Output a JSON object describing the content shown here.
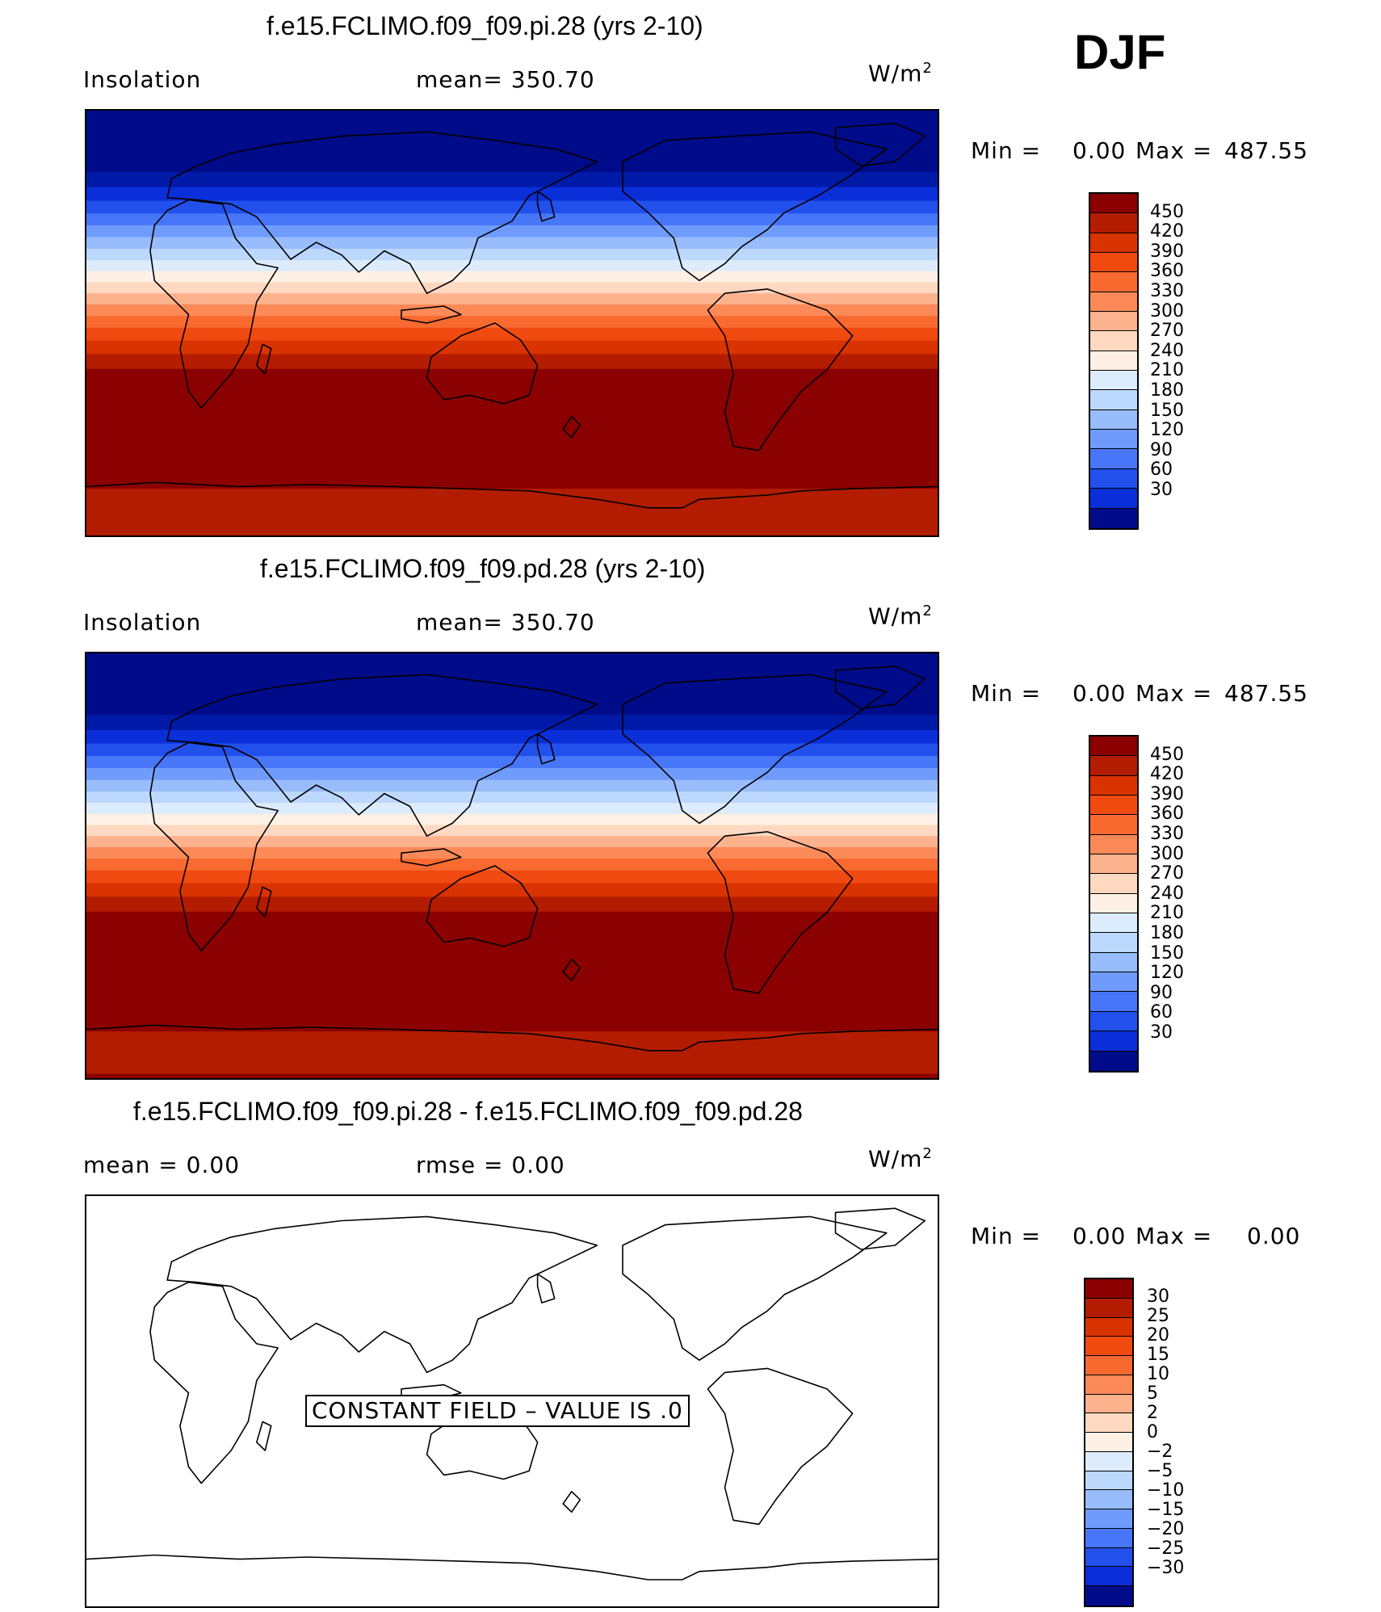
{
  "season": "DJF",
  "units": "W/m",
  "units_sup": "2",
  "panels": [
    {
      "title": "f.e15.FCLIMO.f09_f09.pi.28 (yrs 2-10)",
      "left_label": "Insolation",
      "mid_label": "mean=  350.70",
      "stats": {
        "min_label": "Min  =",
        "min_value": "0.00",
        "max_label": "Max  =",
        "max_value": "487.55"
      },
      "colorbar_labels": [
        "450",
        "420",
        "390",
        "360",
        "330",
        "300",
        "270",
        "240",
        "210",
        "180",
        "150",
        "120",
        "90",
        "60",
        "30"
      ]
    },
    {
      "title": "f.e15.FCLIMO.f09_f09.pd.28 (yrs 2-10)",
      "left_label": "Insolation",
      "mid_label": "mean=  350.70",
      "stats": {
        "min_label": "Min  =",
        "min_value": "0.00",
        "max_label": "Max  =",
        "max_value": "487.55"
      },
      "colorbar_labels": [
        "450",
        "420",
        "390",
        "360",
        "330",
        "300",
        "270",
        "240",
        "210",
        "180",
        "150",
        "120",
        "90",
        "60",
        "30"
      ]
    },
    {
      "title": "f.e15.FCLIMO.f09_f09.pi.28 - f.e15.FCLIMO.f09_f09.pd.28",
      "left_label": "mean  =      0.00",
      "mid_label": "rmse  =      0.00",
      "stats": {
        "min_label": "Min  =",
        "min_value": "0.00",
        "max_label": "Max  =",
        "max_value": "0.00"
      },
      "colorbar_labels": [
        "30",
        "25",
        "20",
        "15",
        "10",
        "5",
        "2",
        "0",
        "−2",
        "−5",
        "−10",
        "−15",
        "−20",
        "−25",
        "−30"
      ],
      "constant_field_text": "CONSTANT FIELD – VALUE IS .0"
    }
  ],
  "colors": {
    "palette_top_to_bottom": [
      "#8b0000",
      "#b31c00",
      "#d83300",
      "#f04a10",
      "#f86a30",
      "#fc8a58",
      "#fdb28e",
      "#fed8c0",
      "#fef0e4",
      "#dcecfc",
      "#bcd8fc",
      "#98bcfc",
      "#6f9cfc",
      "#4876f8",
      "#2250ec",
      "#0a2ed8",
      "#001aa8",
      "#000b8a"
    ],
    "cbar_top_to_bottom": [
      "#8b0000",
      "#b31c00",
      "#d83300",
      "#f04a10",
      "#f86a30",
      "#fc8a58",
      "#fdb28e",
      "#fed8c0",
      "#fef0e4",
      "#dcecfc",
      "#bcd8fc",
      "#98bcfc",
      "#6f9cfc",
      "#4876f8",
      "#2250ec",
      "#0a2ed8",
      "#000b8a"
    ]
  }
}
